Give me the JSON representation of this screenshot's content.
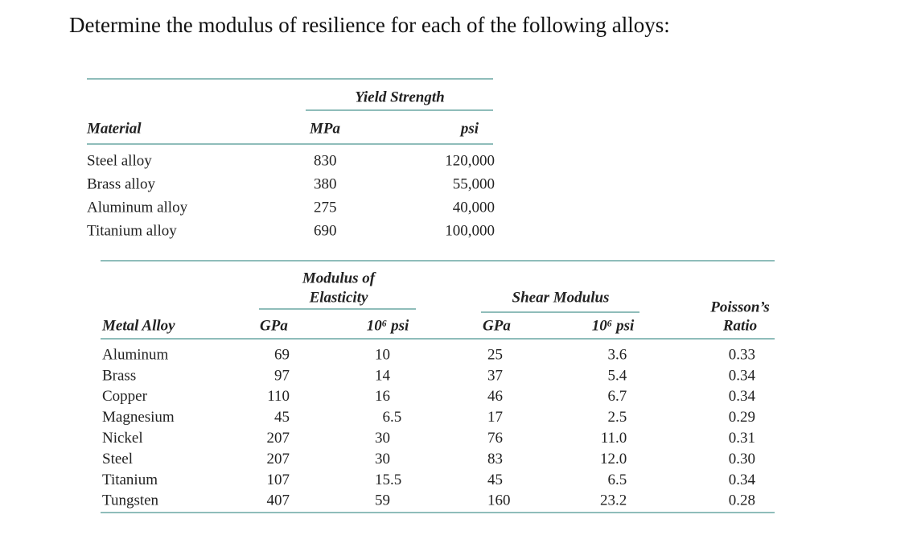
{
  "title": "Determine the modulus of resilience for each of the following alloys:",
  "table1": {
    "group_header": "Yield Strength",
    "headers": [
      "Material",
      "MPa",
      "psi"
    ],
    "rows": [
      [
        "Steel alloy",
        "830",
        "120,000"
      ],
      [
        "Brass alloy",
        "380",
        "55,000"
      ],
      [
        "Aluminum alloy",
        "275",
        "40,000"
      ],
      [
        "Titanium alloy",
        "690",
        "100,000"
      ]
    ]
  },
  "table2": {
    "group_headers": [
      [
        "Modulus of",
        "Elasticity"
      ],
      [
        "Shear Modulus"
      ]
    ],
    "headers": [
      "Metal Alloy",
      "GPa",
      "10⁶ psi",
      "GPa",
      "10⁶ psi",
      [
        "Poisson’s",
        "Ratio"
      ]
    ],
    "rows": [
      [
        "Aluminum",
        "69",
        "10",
        "25",
        "3.6",
        "0.33"
      ],
      [
        "Brass",
        "97",
        "14",
        "37",
        "5.4",
        "0.34"
      ],
      [
        "Copper",
        "110",
        "16",
        "46",
        "6.7",
        "0.34"
      ],
      [
        "Magnesium",
        "45",
        "6.5",
        "17",
        "2.5",
        "0.29"
      ],
      [
        "Nickel",
        "207",
        "30",
        "76",
        "11.0",
        "0.31"
      ],
      [
        "Steel",
        "207",
        "30",
        "83",
        "12.0",
        "0.30"
      ],
      [
        "Titanium",
        "107",
        "15.5",
        "45",
        "6.5",
        "0.34"
      ],
      [
        "Tungsten",
        "407",
        "59",
        "160",
        "23.2",
        "0.28"
      ]
    ]
  }
}
